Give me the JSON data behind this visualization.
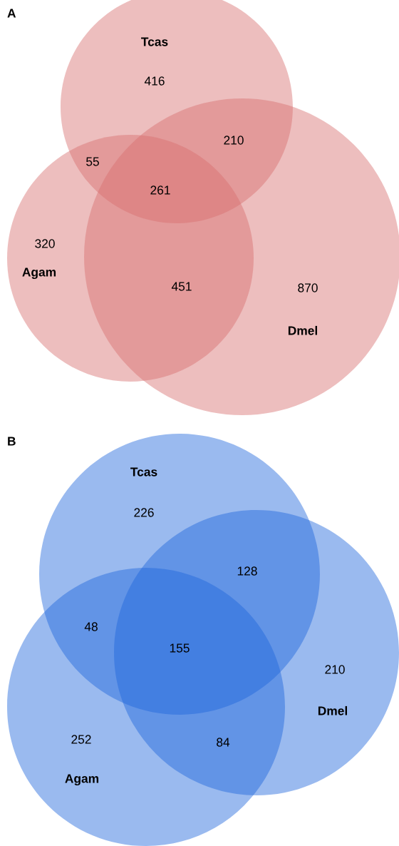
{
  "chart_data": [
    {
      "type": "other",
      "title": "A",
      "color": "#d66f6f",
      "annotations": [
        "Tcas",
        "Agam",
        "Dmel"
      ],
      "categories": [
        null,
        null,
        null,
        null,
        null,
        null,
        null
      ],
      "values": [
        416,
        210,
        55,
        261,
        320,
        451,
        870
      ],
      "data_labels": true
    },
    {
      "type": "other",
      "title": "B",
      "color": "#1f66dc",
      "annotations": [
        "Tcas",
        "Agam",
        "Dmel"
      ],
      "categories": [
        null,
        null,
        null,
        null,
        null,
        null,
        null
      ],
      "values": [
        226,
        128,
        48,
        155,
        210,
        252,
        84
      ],
      "data_labels": true
    }
  ]
}
